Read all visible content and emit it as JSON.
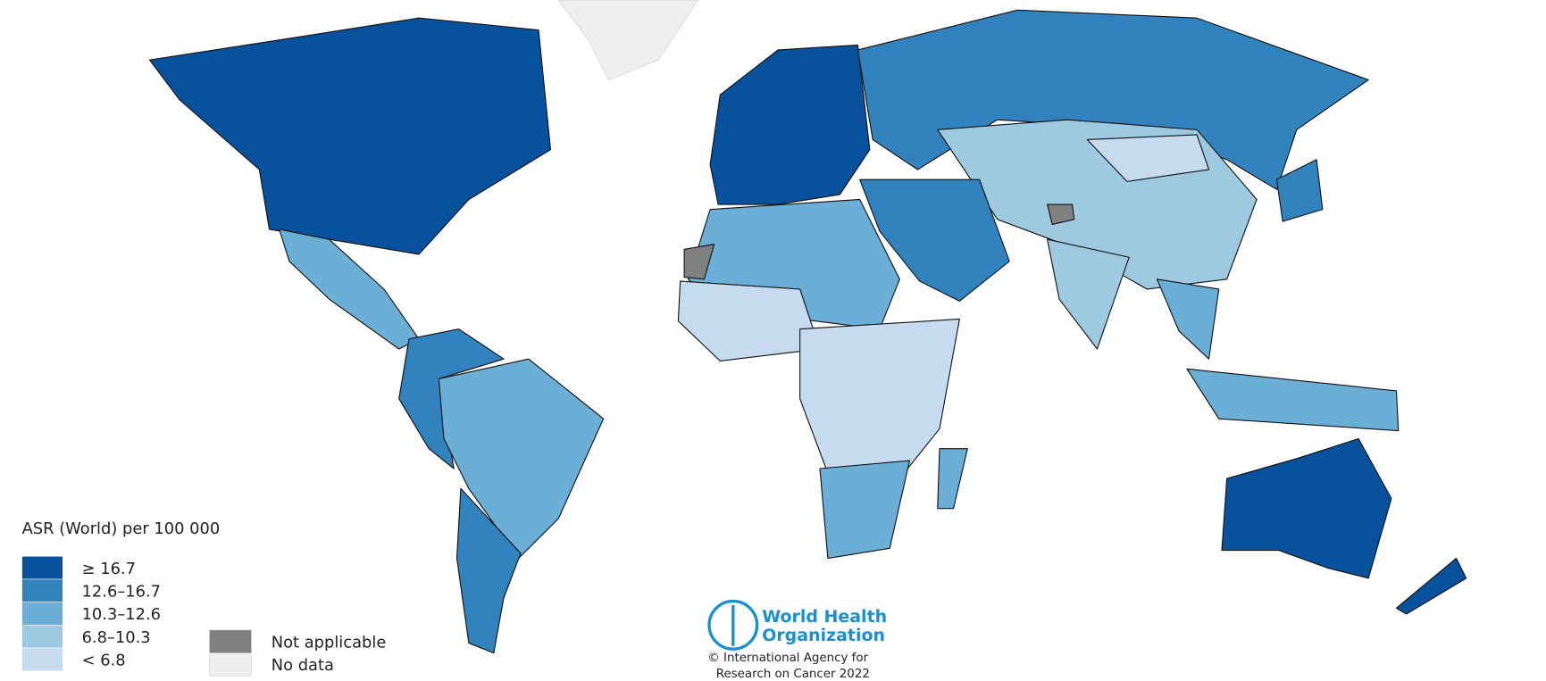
{
  "legend": {
    "title": "ASR (World) per 100 000",
    "classes": [
      {
        "label": "≥ 16.7",
        "color": "#08519c"
      },
      {
        "label": "12.6–16.7",
        "color": "#3182bd"
      },
      {
        "label": "10.3–12.6",
        "color": "#6baed6"
      },
      {
        "label": "6.8–10.3",
        "color": "#9ecae1"
      },
      {
        "label": "< 6.8",
        "color": "#c6dbef"
      }
    ],
    "other": [
      {
        "label": "Not applicable",
        "color": "#808080"
      },
      {
        "label": "No data",
        "color": "#efefef"
      }
    ]
  },
  "logo": {
    "line1": "World Health",
    "line2": "Organization"
  },
  "credit": [
    "© International Agency for",
    "Research on Cancer 2022"
  ]
}
